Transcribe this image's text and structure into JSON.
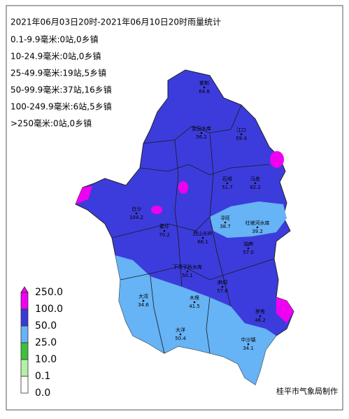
{
  "title": "2021年06月03日20时-2021年06月10日20时雨量统计",
  "stats": [
    "0.1-9.9毫米:0站,0乡镇",
    "10-24.9毫米:0站,0乡镇",
    "25-49.9毫米:19站,5乡镇",
    "50-99.9毫米:37站,16乡镇",
    "100-249.9毫米:6站,5乡镇",
    ">250毫米:0站,0乡镇"
  ],
  "legend": {
    "labels": [
      "250.0",
      "100.0",
      "50.0",
      "25.0",
      "10.0",
      "0.1",
      "0.0"
    ],
    "colors": [
      "#f000f0",
      "#3a3ad6",
      "#66b3f5",
      "#3fbf3f",
      "#b4f0a8",
      "#ffffff"
    ]
  },
  "stations": [
    {
      "name": "紫荆",
      "value": "64.8"
    },
    {
      "name": "金田水库",
      "value": "56.2"
    },
    {
      "name": "江口",
      "value": "59.4"
    },
    {
      "name": "石咀",
      "value": "51.7"
    },
    {
      "name": "马皮",
      "value": "82.2"
    },
    {
      "name": "寻旺",
      "value": "38.7"
    },
    {
      "name": "社坡河水库",
      "value": "39.2"
    },
    {
      "name": "蒙圩",
      "value": "70.2"
    },
    {
      "name": "西山长岭",
      "value": "66.1"
    },
    {
      "name": "下湾子秋水库",
      "value": "50.1"
    },
    {
      "name": "油麻",
      "value": "57.0"
    },
    {
      "name": "麻垌",
      "value": "57.8"
    },
    {
      "name": "大湾",
      "value": "34.6"
    },
    {
      "name": "木根",
      "value": "41.5"
    },
    {
      "name": "罗秀",
      "value": "46.2"
    },
    {
      "name": "大洋",
      "value": "50.4"
    },
    {
      "name": "中沙镇",
      "value": "34.1"
    },
    {
      "name": "白沙",
      "value": "104.2"
    }
  ],
  "credit": "桂平市气象局制作"
}
